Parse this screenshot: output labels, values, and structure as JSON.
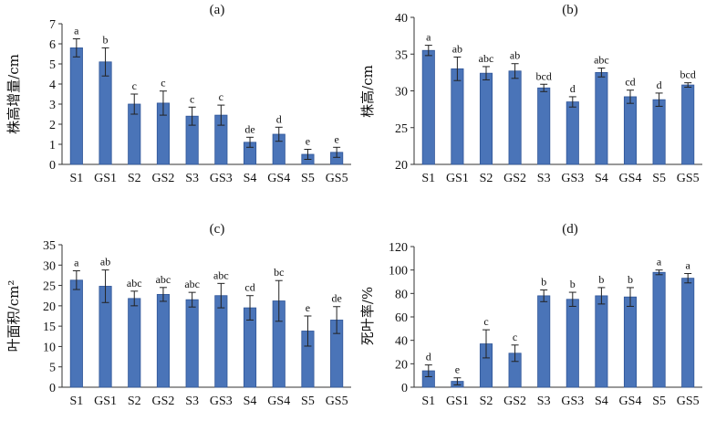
{
  "colors": {
    "bar": "#4a74b8",
    "bar_edge": "#2f5597",
    "axis": "#333333"
  },
  "chart_data": [
    {
      "type": "bar",
      "panel": "(a)",
      "ylabel": "株高增量/cm",
      "ylim": [
        0,
        7
      ],
      "yticks": [
        0,
        1,
        2,
        3,
        4,
        5,
        6,
        7
      ],
      "categories": [
        "S1",
        "GS1",
        "S2",
        "GS2",
        "S3",
        "GS3",
        "S4",
        "GS4",
        "S5",
        "GS5"
      ],
      "values": [
        5.8,
        5.1,
        3.0,
        3.05,
        2.4,
        2.45,
        1.1,
        1.5,
        0.5,
        0.6
      ],
      "errors": [
        0.45,
        0.7,
        0.5,
        0.6,
        0.45,
        0.5,
        0.25,
        0.35,
        0.25,
        0.25
      ],
      "labels": [
        "a",
        "b",
        "c",
        "c",
        "c",
        "c",
        "de",
        "d",
        "e",
        "e"
      ]
    },
    {
      "type": "bar",
      "panel": "(b)",
      "ylabel": "株高/cm",
      "ylim": [
        20,
        40
      ],
      "yticks": [
        20,
        25,
        30,
        35,
        40
      ],
      "categories": [
        "S1",
        "GS1",
        "S2",
        "GS2",
        "S3",
        "GS3",
        "S4",
        "GS4",
        "S5",
        "GS5"
      ],
      "values": [
        35.5,
        33.0,
        32.4,
        32.7,
        30.4,
        28.5,
        32.5,
        29.2,
        28.8,
        30.8
      ],
      "errors": [
        0.7,
        1.6,
        0.9,
        1.0,
        0.5,
        0.7,
        0.6,
        0.9,
        0.9,
        0.3
      ],
      "labels": [
        "a",
        "ab",
        "abc",
        "ab",
        "bcd",
        "d",
        "abc",
        "cd",
        "d",
        "bcd"
      ]
    },
    {
      "type": "bar",
      "panel": "(c)",
      "ylabel": "叶面积/cm²",
      "ylim": [
        0,
        35
      ],
      "yticks": [
        0,
        5,
        10,
        15,
        20,
        25,
        30,
        35
      ],
      "categories": [
        "S1",
        "GS1",
        "S2",
        "GS2",
        "S3",
        "GS3",
        "S4",
        "GS4",
        "S5",
        "GS5"
      ],
      "values": [
        26.3,
        24.8,
        21.8,
        22.8,
        21.5,
        22.5,
        19.5,
        21.2,
        13.8,
        16.5
      ],
      "errors": [
        2.3,
        4.0,
        1.8,
        1.7,
        1.8,
        3.0,
        3.0,
        5.0,
        3.7,
        3.3
      ],
      "labels": [
        "a",
        "ab",
        "abc",
        "abc",
        "abc",
        "abc",
        "cd",
        "bc",
        "e",
        "de"
      ]
    },
    {
      "type": "bar",
      "panel": "(d)",
      "ylabel": "死叶率/%",
      "ylim": [
        0,
        120
      ],
      "yticks": [
        0,
        20,
        40,
        60,
        80,
        100,
        120
      ],
      "categories": [
        "S1",
        "GS1",
        "S2",
        "GS2",
        "S3",
        "GS3",
        "S4",
        "GS4",
        "S5",
        "GS5"
      ],
      "values": [
        14,
        5,
        37,
        29,
        78,
        75,
        78,
        77,
        98,
        93
      ],
      "errors": [
        5,
        3,
        12,
        7,
        5,
        6,
        7,
        8,
        2,
        4
      ],
      "labels": [
        "d",
        "e",
        "c",
        "c",
        "b",
        "b",
        "b",
        "b",
        "a",
        "a"
      ]
    }
  ]
}
